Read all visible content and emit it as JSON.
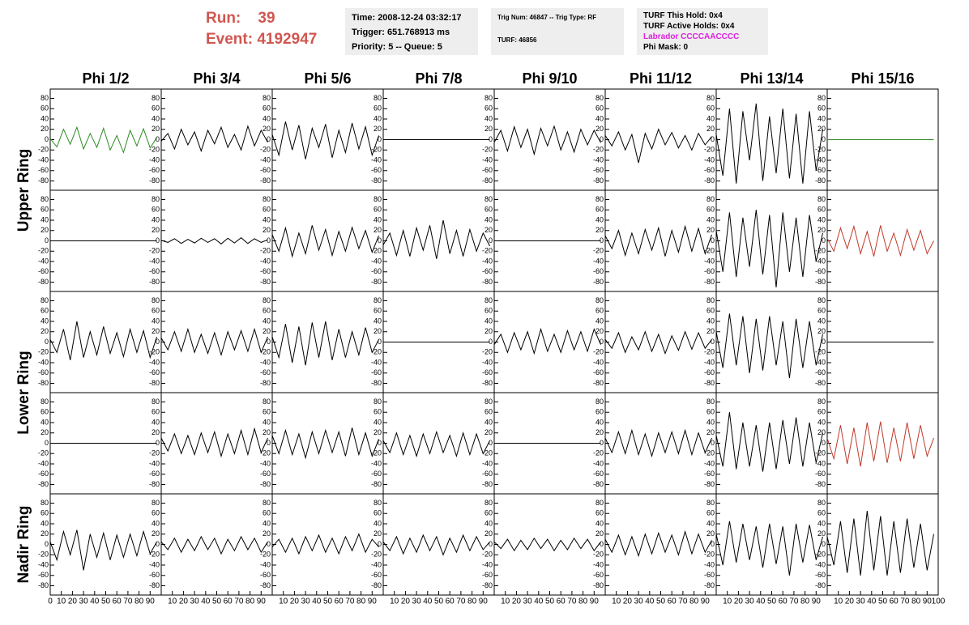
{
  "header": {
    "run_label": "Run:",
    "run": "39",
    "event_label": "Event:",
    "event": "4192947",
    "box1": [
      "Time: 2008-12-24 03:32:17",
      "Trigger: 651.768913 ms",
      "Priority: 5 -- Queue: 5"
    ],
    "box2": [
      "Trig Num: 46847 -- Trig Type: RF",
      "TURF: 46856"
    ],
    "box3": [
      "TURF This Hold: 0x4",
      "TURF Active Holds: 0x4",
      "Labrador CCCCAACCCC",
      "Phi Mask: 0"
    ]
  },
  "chart_data": {
    "type": "line",
    "columns": [
      "Phi 1/2",
      "Phi 3/4",
      "Phi 5/6",
      "Phi 7/8",
      "Phi 9/10",
      "Phi 11/12",
      "Phi 13/14",
      "Phi 15/16"
    ],
    "row_labels": [
      "Upper Ring",
      "Lower Ring",
      "Nadir Ring"
    ],
    "xlim": [
      0,
      100
    ],
    "xticks": [
      0,
      10,
      20,
      30,
      40,
      50,
      60,
      70,
      80,
      90,
      100
    ],
    "ylim": [
      -98,
      98
    ],
    "yticks": [
      -80,
      -60,
      -40,
      -20,
      0,
      20,
      40,
      60,
      80
    ],
    "x": [
      0,
      6,
      12,
      18,
      24,
      30,
      36,
      42,
      48,
      54,
      60,
      66,
      72,
      78,
      84,
      90,
      96
    ],
    "series": [
      {
        "color": "#2e8b22",
        "values": [
          2,
          -14,
          20,
          -9,
          24,
          -18,
          12,
          -15,
          22,
          -20,
          8,
          -25,
          18,
          -12,
          21,
          -16,
          4
        ]
      },
      {
        "color": "#000000",
        "values": [
          -3,
          12,
          -18,
          20,
          -10,
          15,
          -22,
          18,
          -8,
          24,
          -15,
          10,
          -20,
          26,
          -12,
          18,
          -5
        ]
      },
      {
        "color": "#000000",
        "values": [
          10,
          -30,
          35,
          -20,
          28,
          -38,
          22,
          -15,
          30,
          -35,
          18,
          -25,
          32,
          -18,
          25,
          -30,
          8
        ]
      },
      {
        "color": "#000000",
        "values": [
          0,
          0,
          0,
          0,
          0,
          0,
          0,
          0,
          0,
          0,
          0,
          0,
          0,
          0,
          0,
          0,
          0
        ]
      },
      {
        "color": "#000000",
        "values": [
          -5,
          18,
          -22,
          25,
          -15,
          20,
          -28,
          22,
          -12,
          26,
          -20,
          15,
          -24,
          20,
          -10,
          18,
          -6
        ]
      },
      {
        "color": "#000000",
        "values": [
          8,
          -12,
          15,
          -20,
          10,
          -45,
          12,
          -18,
          20,
          -10,
          14,
          -16,
          8,
          -20,
          12,
          -10,
          6
        ]
      },
      {
        "color": "#000000",
        "values": [
          10,
          -70,
          60,
          -85,
          55,
          -40,
          70,
          -80,
          45,
          -65,
          60,
          -75,
          50,
          -85,
          55,
          -60,
          20
        ]
      },
      {
        "color": "#2e8b22",
        "values": [
          0,
          0,
          0,
          0,
          0,
          0,
          0,
          0,
          0,
          0,
          0,
          0,
          0,
          0,
          0,
          0,
          0
        ]
      },
      {
        "color": "#000000",
        "values": [
          0,
          0,
          0,
          0,
          0,
          0,
          0,
          0,
          0,
          0,
          0,
          0,
          0,
          0,
          0,
          0,
          0
        ]
      },
      {
        "color": "#000000",
        "values": [
          1,
          -3,
          4,
          -5,
          3,
          -4,
          5,
          -3,
          4,
          -6,
          5,
          -4,
          6,
          -5,
          4,
          -3,
          2
        ]
      },
      {
        "color": "#000000",
        "values": [
          12,
          -20,
          25,
          -30,
          15,
          -25,
          30,
          -18,
          22,
          -28,
          18,
          -20,
          26,
          -15,
          20,
          -22,
          10
        ]
      },
      {
        "color": "#000000",
        "values": [
          -8,
          15,
          -28,
          20,
          -30,
          25,
          -18,
          30,
          -35,
          40,
          -25,
          20,
          -30,
          22,
          -20,
          15,
          -10
        ]
      },
      {
        "color": "#000000",
        "values": [
          0,
          0,
          0,
          0,
          0,
          0,
          0,
          0,
          0,
          0,
          0,
          0,
          0,
          0,
          0,
          0,
          0
        ]
      },
      {
        "color": "#000000",
        "values": [
          10,
          -15,
          20,
          -28,
          15,
          -25,
          22,
          -18,
          25,
          -30,
          20,
          -22,
          28,
          -20,
          24,
          -25,
          12
        ]
      },
      {
        "color": "#000000",
        "values": [
          20,
          -60,
          55,
          -70,
          45,
          -50,
          60,
          -65,
          50,
          -90,
          55,
          -60,
          45,
          -70,
          50,
          -40,
          15
        ]
      },
      {
        "color": "#c0392b",
        "values": [
          5,
          -20,
          25,
          -15,
          28,
          -25,
          18,
          -30,
          30,
          -20,
          15,
          -28,
          22,
          -18,
          20,
          -25,
          0
        ]
      },
      {
        "color": "#000000",
        "values": [
          5,
          -20,
          25,
          -35,
          40,
          -30,
          20,
          -25,
          30,
          -22,
          18,
          -28,
          25,
          -20,
          22,
          -30,
          10
        ]
      },
      {
        "color": "#000000",
        "values": [
          8,
          -15,
          20,
          -18,
          25,
          -20,
          15,
          -22,
          18,
          -25,
          20,
          -15,
          22,
          -18,
          25,
          -20,
          10
        ]
      },
      {
        "color": "#000000",
        "values": [
          10,
          -30,
          35,
          -40,
          30,
          -45,
          38,
          -30,
          40,
          -35,
          25,
          -30,
          20,
          -25,
          28,
          -20,
          5
        ]
      },
      {
        "color": "#000000",
        "values": [
          0,
          0,
          0,
          0,
          0,
          0,
          0,
          0,
          0,
          0,
          0,
          0,
          0,
          0,
          0,
          0,
          0
        ]
      },
      {
        "color": "#000000",
        "values": [
          -5,
          15,
          -20,
          18,
          -15,
          20,
          -22,
          25,
          -18,
          15,
          -20,
          22,
          -15,
          20,
          -18,
          25,
          -5
        ]
      },
      {
        "color": "#000000",
        "values": [
          5,
          -12,
          18,
          -20,
          10,
          -15,
          20,
          -18,
          15,
          -22,
          12,
          -16,
          20,
          -14,
          18,
          -12,
          5
        ]
      },
      {
        "color": "#000000",
        "values": [
          20,
          -50,
          55,
          -45,
          50,
          -60,
          45,
          -55,
          50,
          -45,
          40,
          -70,
          45,
          -50,
          40,
          -45,
          15
        ]
      },
      {
        "color": "#000000",
        "values": [
          0,
          0,
          0,
          0,
          0,
          0,
          0,
          0,
          0,
          0,
          0,
          0,
          0,
          0,
          0,
          0,
          0
        ]
      },
      {
        "color": "#000000",
        "values": [
          0,
          0,
          0,
          0,
          0,
          0,
          0,
          0,
          0,
          0,
          0,
          0,
          0,
          0,
          0,
          0,
          0
        ]
      },
      {
        "color": "#000000",
        "values": [
          10,
          -15,
          18,
          -20,
          15,
          -22,
          20,
          -18,
          22,
          -25,
          18,
          -20,
          25,
          -22,
          28,
          -18,
          10
        ]
      },
      {
        "color": "#000000",
        "values": [
          15,
          -20,
          25,
          -22,
          18,
          -28,
          22,
          -20,
          25,
          -18,
          22,
          -25,
          30,
          -22,
          20,
          -25,
          8
        ]
      },
      {
        "color": "#000000",
        "values": [
          5,
          -18,
          20,
          -22,
          15,
          -25,
          18,
          -20,
          22,
          -18,
          15,
          -25,
          20,
          -22,
          18,
          -20,
          5
        ]
      },
      {
        "color": "#000000",
        "values": [
          0,
          0,
          0,
          0,
          0,
          0,
          0,
          0,
          0,
          0,
          0,
          0,
          0,
          0,
          0,
          0,
          0
        ]
      },
      {
        "color": "#000000",
        "values": [
          10,
          -18,
          22,
          -20,
          25,
          -22,
          18,
          -25,
          20,
          -18,
          22,
          -20,
          25,
          -22,
          20,
          -18,
          10
        ]
      },
      {
        "color": "#000000",
        "values": [
          15,
          -45,
          60,
          -50,
          40,
          -45,
          35,
          -55,
          40,
          -50,
          45,
          -40,
          50,
          -45,
          40,
          -38,
          20
        ]
      },
      {
        "color": "#c0392b",
        "values": [
          10,
          -30,
          35,
          -40,
          30,
          -45,
          40,
          -35,
          42,
          -38,
          30,
          -35,
          40,
          -30,
          35,
          -25,
          10
        ]
      },
      {
        "color": "#000000",
        "values": [
          5,
          -30,
          25,
          -20,
          28,
          -50,
          20,
          -25,
          22,
          -30,
          18,
          -25,
          20,
          -22,
          25,
          -18,
          5
        ]
      },
      {
        "color": "#000000",
        "values": [
          5,
          -10,
          12,
          -15,
          10,
          -12,
          15,
          -10,
          12,
          -18,
          10,
          -12,
          15,
          -10,
          12,
          -15,
          5
        ]
      },
      {
        "color": "#000000",
        "values": [
          -5,
          10,
          -15,
          12,
          -18,
          15,
          -12,
          18,
          -15,
          12,
          -18,
          15,
          -12,
          20,
          -15,
          10,
          -5
        ]
      },
      {
        "color": "#000000",
        "values": [
          5,
          -12,
          15,
          -18,
          12,
          -15,
          18,
          -12,
          15,
          -20,
          12,
          -15,
          18,
          -12,
          15,
          -10,
          5
        ]
      },
      {
        "color": "#000000",
        "values": [
          5,
          -8,
          10,
          -12,
          8,
          -10,
          12,
          -8,
          10,
          -12,
          8,
          -10,
          12,
          -8,
          10,
          -12,
          5
        ]
      },
      {
        "color": "#000000",
        "values": [
          10,
          -15,
          18,
          -20,
          15,
          -22,
          20,
          -18,
          22,
          -15,
          18,
          -20,
          25,
          -18,
          20,
          -15,
          8
        ]
      },
      {
        "color": "#000000",
        "values": [
          20,
          -40,
          45,
          -35,
          40,
          -30,
          35,
          -45,
          40,
          -38,
          35,
          -60,
          40,
          -35,
          38,
          -30,
          15
        ]
      },
      {
        "color": "#000000",
        "values": [
          15,
          -40,
          45,
          -55,
          50,
          -60,
          65,
          -50,
          55,
          -60,
          45,
          -55,
          50,
          -45,
          40,
          -50,
          20
        ]
      }
    ]
  }
}
